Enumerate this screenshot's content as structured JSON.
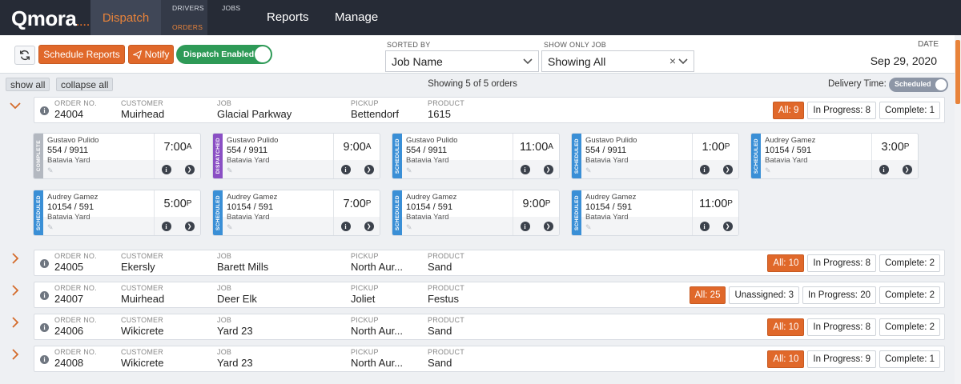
{
  "nav": {
    "logo": "Qmora",
    "logo_dots": "....",
    "dispatch": "Dispatch",
    "drivers": "DRIVERS",
    "jobs": "JOBS",
    "orders": "ORDERS",
    "reports": "Reports",
    "manage": "Manage"
  },
  "toolbar": {
    "refresh_icon": "refresh-icon",
    "schedule_reports": "Schedule Reports",
    "notify": "Notify",
    "dispatch_toggle": "Dispatch Enabled",
    "sorted_by_label": "SORTED BY",
    "sorted_by_value": "Job Name",
    "show_only_label": "SHOW ONLY JOB",
    "show_only_value": "Showing All",
    "date_label": "DATE",
    "date_value": "Sep 29, 2020"
  },
  "subbar": {
    "show_all": "show all",
    "collapse_all": "collapse all",
    "showing": "Showing 5 of 5 orders",
    "delivery_time_label": "Delivery Time:",
    "delivery_toggle": "Scheduled"
  },
  "column_labels": {
    "order": "ORDER NO.",
    "customer": "CUSTOMER",
    "job": "JOB",
    "pickup": "PICKUP",
    "product": "PRODUCT"
  },
  "orders": [
    {
      "order": "24004",
      "customer": "Muirhead",
      "job": "Glacial Parkway",
      "pickup": "Bettendorf",
      "product": "1615",
      "expanded": true,
      "chips": [
        {
          "text": "All: 9",
          "all": true
        },
        {
          "text": "In Progress: 8"
        },
        {
          "text": "Complete: 1"
        }
      ]
    },
    {
      "order": "24005",
      "customer": "Ekersly",
      "job": "Barett Mills",
      "pickup": "North Aur...",
      "product": "Sand",
      "expanded": false,
      "chips": [
        {
          "text": "All: 10",
          "all": true
        },
        {
          "text": "In Progress: 8"
        },
        {
          "text": "Complete: 2"
        }
      ]
    },
    {
      "order": "24007",
      "customer": "Muirhead",
      "job": "Deer Elk",
      "pickup": "Joliet",
      "product": "Festus",
      "expanded": false,
      "chips": [
        {
          "text": "All: 25",
          "all": true
        },
        {
          "text": "Unassigned: 3"
        },
        {
          "text": "In Progress: 20"
        },
        {
          "text": "Complete: 2"
        }
      ]
    },
    {
      "order": "24006",
      "customer": "Wikicrete",
      "job": "Yard 23",
      "pickup": "North Aur...",
      "product": "Sand",
      "expanded": false,
      "chips": [
        {
          "text": "All: 10",
          "all": true
        },
        {
          "text": "In Progress: 8"
        },
        {
          "text": "Complete: 2"
        }
      ]
    },
    {
      "order": "24008",
      "customer": "Wikicrete",
      "job": "Yard 23",
      "pickup": "North Aur...",
      "product": "Sand",
      "expanded": false,
      "chips": [
        {
          "text": "All: 10",
          "all": true
        },
        {
          "text": "In Progress: 9"
        },
        {
          "text": "Complete: 1"
        }
      ]
    }
  ],
  "status_colors": {
    "COMPLETE": "#b3b8c0",
    "DISPATCHED": "#8a4fc4",
    "SCHEDULED": "#3a8fd6"
  },
  "jobs": [
    {
      "status": "COMPLETE",
      "driver": "Gustavo Pulido",
      "ticket": "554 / 9911",
      "yard": "Batavia Yard",
      "time": "7:00",
      "ampm": "A"
    },
    {
      "status": "DISPATCHED",
      "driver": "Gustavo Pulido",
      "ticket": "554 / 9911",
      "yard": "Batavia Yard",
      "time": "9:00",
      "ampm": "A"
    },
    {
      "status": "SCHEDULED",
      "driver": "Gustavo Pulido",
      "ticket": "554 / 9911",
      "yard": "Batavia Yard",
      "time": "11:00",
      "ampm": "A"
    },
    {
      "status": "SCHEDULED",
      "driver": "Gustavo Pulido",
      "ticket": "554 / 9911",
      "yard": "Batavia Yard",
      "time": "1:00",
      "ampm": "P"
    },
    {
      "status": "SCHEDULED",
      "driver": "Audrey Gamez",
      "ticket": "10154 / 591",
      "yard": "Batavia Yard",
      "time": "3:00",
      "ampm": "P"
    },
    {
      "status": "SCHEDULED",
      "driver": "Audrey Gamez",
      "ticket": "10154 / 591",
      "yard": "Batavia Yard",
      "time": "5:00",
      "ampm": "P"
    },
    {
      "status": "SCHEDULED",
      "driver": "Audrey Gamez",
      "ticket": "10154 / 591",
      "yard": "Batavia Yard",
      "time": "7:00",
      "ampm": "P"
    },
    {
      "status": "SCHEDULED",
      "driver": "Audrey Gamez",
      "ticket": "10154 / 591",
      "yard": "Batavia Yard",
      "time": "9:00",
      "ampm": "P"
    },
    {
      "status": "SCHEDULED",
      "driver": "Audrey Gamez",
      "ticket": "10154 / 591",
      "yard": "Batavia Yard",
      "time": "11:00",
      "ampm": "P"
    }
  ]
}
